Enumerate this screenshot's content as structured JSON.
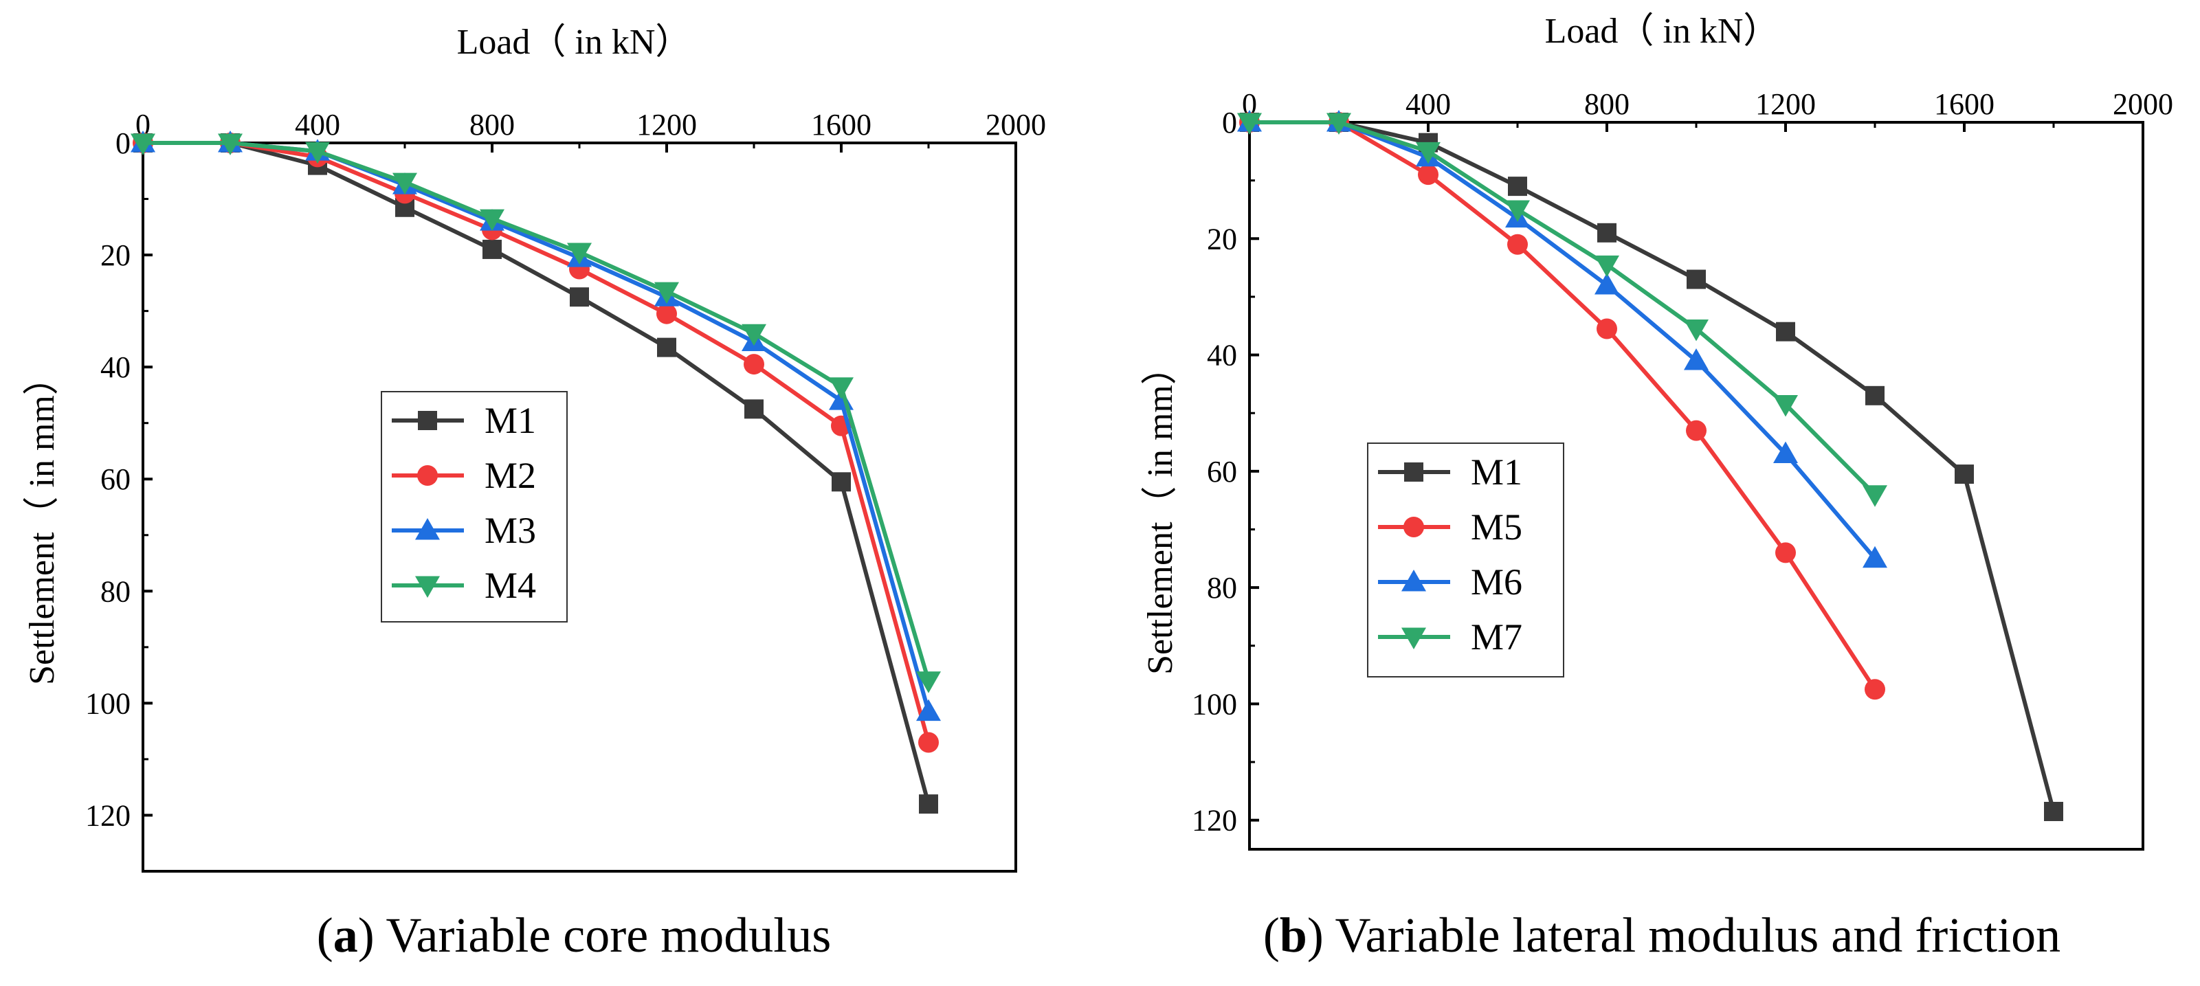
{
  "colors": {
    "M1": "#3a3a3a",
    "M2": "#f03a3a",
    "M3": "#1f6fe0",
    "M4": "#2fa86a",
    "M5": "#f03a3a",
    "M6": "#1f6fe0",
    "M7": "#2fa86a"
  },
  "chart_data": [
    {
      "type": "line",
      "xlabel": "Load（  in kN）",
      "ylabel": "Settlement（  in mm）",
      "xlim": [
        0,
        2000
      ],
      "ylim": [
        0,
        130
      ],
      "xticks": [
        0,
        400,
        800,
        1200,
        1600,
        2000
      ],
      "yticks": [
        0,
        20,
        40,
        60,
        80,
        100,
        120
      ],
      "caption_label": "a",
      "caption_text": "Variable core modulus",
      "legend_position": "center-left",
      "series": [
        {
          "name": "M1",
          "marker": "square",
          "x": [
            0,
            200,
            400,
            600,
            800,
            1000,
            1200,
            1400,
            1600,
            1800
          ],
          "y": [
            0,
            0,
            4,
            11.5,
            19,
            27.5,
            36.5,
            47.5,
            60.5,
            118
          ]
        },
        {
          "name": "M2",
          "marker": "circle",
          "x": [
            0,
            200,
            400,
            600,
            800,
            1000,
            1200,
            1400,
            1600,
            1800
          ],
          "y": [
            0,
            0,
            2.5,
            9,
            15.5,
            22.5,
            30.5,
            39.5,
            50.5,
            107
          ]
        },
        {
          "name": "M3",
          "marker": "triangle-up",
          "x": [
            0,
            200,
            400,
            600,
            800,
            1000,
            1200,
            1400,
            1600,
            1800
          ],
          "y": [
            0,
            0,
            1.5,
            7.5,
            14,
            20.5,
            27.5,
            35.5,
            46,
            101.5
          ]
        },
        {
          "name": "M4",
          "marker": "triangle-down",
          "x": [
            0,
            200,
            400,
            600,
            800,
            1000,
            1200,
            1400,
            1600,
            1800
          ],
          "y": [
            0,
            0,
            1.5,
            7,
            13.5,
            19.5,
            26.5,
            34,
            43.5,
            96
          ]
        }
      ]
    },
    {
      "type": "line",
      "xlabel": "Load（  in kN）",
      "ylabel": "Settlement（  in mm）",
      "xlim": [
        0,
        2000
      ],
      "ylim": [
        0,
        125
      ],
      "xticks": [
        0,
        400,
        800,
        1200,
        1600,
        2000
      ],
      "yticks": [
        0,
        20,
        40,
        60,
        80,
        100,
        120
      ],
      "caption_label": "b",
      "caption_text": "Variable lateral modulus and friction",
      "legend_position": "lower-left",
      "series": [
        {
          "name": "M1",
          "marker": "square",
          "x": [
            0,
            200,
            400,
            600,
            800,
            1000,
            1200,
            1400,
            1600,
            1800
          ],
          "y": [
            0,
            0,
            3.5,
            11,
            19,
            27,
            36,
            47,
            60.5,
            118.5
          ]
        },
        {
          "name": "M5",
          "marker": "circle",
          "x": [
            0,
            200,
            400,
            600,
            800,
            1000,
            1200,
            1400
          ],
          "y": [
            0,
            0,
            9,
            21,
            35.5,
            53,
            74,
            97.5
          ]
        },
        {
          "name": "M6",
          "marker": "triangle-up",
          "x": [
            0,
            200,
            400,
            600,
            800,
            1000,
            1200,
            1400
          ],
          "y": [
            0,
            0,
            6,
            16.5,
            28,
            41,
            57,
            75
          ]
        },
        {
          "name": "M7",
          "marker": "triangle-down",
          "x": [
            0,
            200,
            400,
            600,
            800,
            1000,
            1200,
            1400
          ],
          "y": [
            0,
            0,
            5,
            15,
            24.5,
            35.5,
            48.5,
            64
          ]
        }
      ]
    }
  ]
}
